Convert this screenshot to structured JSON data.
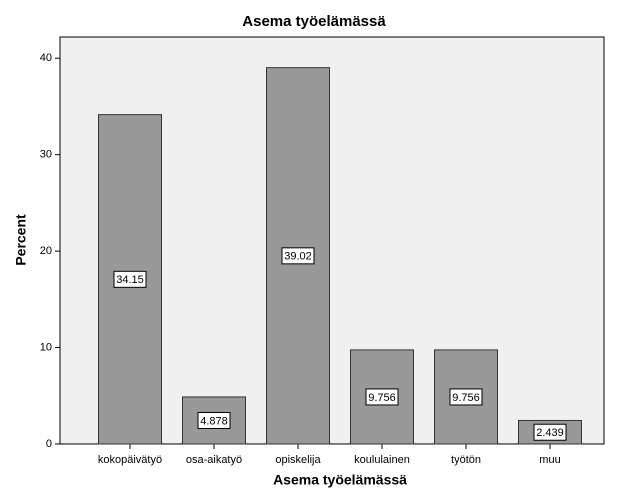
{
  "chart_data": {
    "type": "bar",
    "title": "Asema työelämässä",
    "x_label": "Asema työelämässä",
    "y_label": "Percent",
    "categories": [
      "kokopäivätyö",
      "osa-aikatyö",
      "opiskelija",
      "koululainen",
      "työtön",
      "muu"
    ],
    "values": [
      34.15,
      4.878,
      39.02,
      9.756,
      9.756,
      2.439
    ],
    "color": "#999999",
    "ylim": [
      0,
      42.2
    ],
    "yticks": [
      0,
      10,
      20,
      30,
      40
    ],
    "grid": false
  }
}
